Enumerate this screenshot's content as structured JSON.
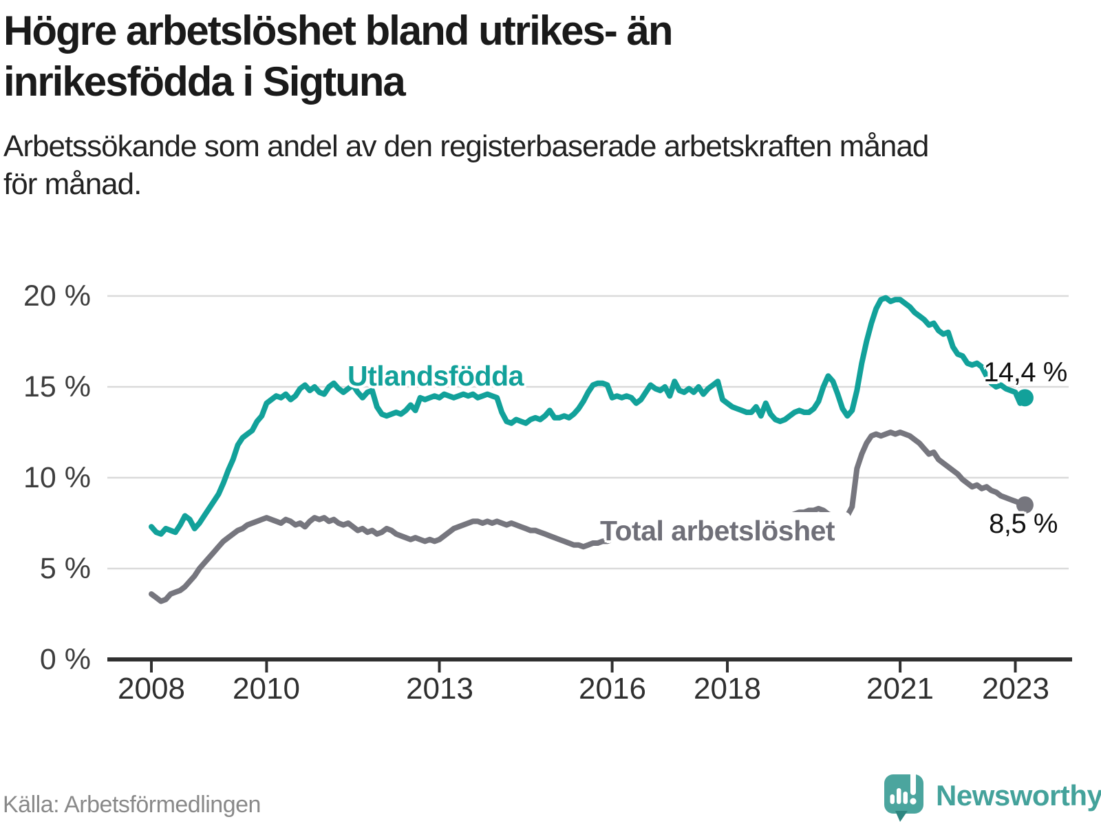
{
  "header": {
    "title": "Högre arbetslöshet bland utrikes- än\ninrikesfödda i Sigtuna",
    "subtitle": "Arbetssökande som andel av den registerbaserade arbetskraften månad\nför månad."
  },
  "chart_data": {
    "type": "line",
    "title": "Högre arbetslöshet bland utrikes- än inrikesfödda i Sigtuna",
    "unit": "%",
    "frequency": "monthly",
    "x_start": "2008-01",
    "x_end": "2023-03",
    "grid": "horizontal",
    "y_axis": {
      "range": [
        0,
        21
      ],
      "ticks": [
        {
          "label": "20 %",
          "value": 20
        },
        {
          "label": "15 %",
          "value": 15
        },
        {
          "label": "10 %",
          "value": 10
        },
        {
          "label": "5 %",
          "value": 5
        },
        {
          "label": "0 %",
          "value": 0
        }
      ]
    },
    "x_axis": {
      "ticks": [
        {
          "label": "2008",
          "year": 2008
        },
        {
          "label": "2010",
          "year": 2010
        },
        {
          "label": "2013",
          "year": 2013
        },
        {
          "label": "2016",
          "year": 2016
        },
        {
          "label": "2018",
          "year": 2018
        },
        {
          "label": "2021",
          "year": 2021
        },
        {
          "label": "2023",
          "year": 2023
        }
      ]
    },
    "series": [
      {
        "name": "Utlandsfödda",
        "color": "#12A19A",
        "end_label": "14,4 %",
        "end_value": 14.4,
        "values": [
          7.3,
          7.0,
          6.9,
          7.2,
          7.1,
          7.0,
          7.4,
          7.9,
          7.7,
          7.2,
          7.5,
          7.9,
          8.3,
          8.7,
          9.1,
          9.7,
          10.4,
          11.0,
          11.8,
          12.2,
          12.4,
          12.6,
          13.1,
          13.4,
          14.1,
          14.3,
          14.5,
          14.4,
          14.6,
          14.3,
          14.5,
          14.9,
          15.1,
          14.8,
          15.0,
          14.7,
          14.6,
          15.0,
          15.2,
          14.9,
          14.7,
          14.9,
          15.1,
          14.7,
          14.4,
          14.7,
          14.8,
          13.9,
          13.5,
          13.4,
          13.5,
          13.6,
          13.5,
          13.7,
          14.0,
          13.7,
          14.4,
          14.3,
          14.4,
          14.5,
          14.4,
          14.6,
          14.5,
          14.4,
          14.5,
          14.6,
          14.5,
          14.6,
          14.4,
          14.5,
          14.6,
          14.5,
          14.4,
          13.6,
          13.1,
          13.0,
          13.2,
          13.1,
          13.0,
          13.2,
          13.3,
          13.2,
          13.4,
          13.7,
          13.3,
          13.3,
          13.4,
          13.3,
          13.5,
          13.8,
          14.2,
          14.7,
          15.1,
          15.2,
          15.2,
          15.1,
          14.4,
          14.5,
          14.4,
          14.5,
          14.4,
          14.1,
          14.3,
          14.7,
          15.1,
          14.9,
          14.8,
          15.0,
          14.5,
          15.3,
          14.8,
          14.7,
          14.9,
          14.7,
          15.0,
          14.6,
          14.9,
          15.1,
          15.3,
          14.3,
          14.1,
          13.9,
          13.8,
          13.7,
          13.6,
          13.6,
          13.9,
          13.4,
          14.1,
          13.5,
          13.2,
          13.1,
          13.2,
          13.4,
          13.6,
          13.7,
          13.6,
          13.6,
          13.8,
          14.2,
          15.0,
          15.6,
          15.3,
          14.6,
          13.8,
          13.4,
          13.7,
          14.8,
          16.3,
          17.5,
          18.5,
          19.3,
          19.8,
          19.9,
          19.7,
          19.8,
          19.8,
          19.6,
          19.4,
          19.1,
          18.9,
          18.7,
          18.4,
          18.5,
          18.1,
          17.9,
          18.0,
          17.2,
          16.8,
          16.7,
          16.3,
          16.2,
          16.3,
          16.1,
          15.6,
          15.2,
          15.0,
          15.1,
          14.9,
          14.8,
          14.7,
          14.1,
          14.4
        ]
      },
      {
        "name": "Total arbetslöshet",
        "color": "#76767E",
        "end_label": "8,5 %",
        "end_value": 8.5,
        "values": [
          3.6,
          3.4,
          3.2,
          3.3,
          3.6,
          3.7,
          3.8,
          4.0,
          4.3,
          4.6,
          5.0,
          5.3,
          5.6,
          5.9,
          6.2,
          6.5,
          6.7,
          6.9,
          7.1,
          7.2,
          7.4,
          7.5,
          7.6,
          7.7,
          7.8,
          7.7,
          7.6,
          7.5,
          7.7,
          7.6,
          7.4,
          7.5,
          7.3,
          7.6,
          7.8,
          7.7,
          7.8,
          7.6,
          7.7,
          7.5,
          7.4,
          7.5,
          7.3,
          7.1,
          7.2,
          7.0,
          7.1,
          6.9,
          7.0,
          7.2,
          7.1,
          6.9,
          6.8,
          6.7,
          6.6,
          6.7,
          6.6,
          6.5,
          6.6,
          6.5,
          6.6,
          6.8,
          7.0,
          7.2,
          7.3,
          7.4,
          7.5,
          7.6,
          7.6,
          7.5,
          7.6,
          7.5,
          7.6,
          7.5,
          7.4,
          7.5,
          7.4,
          7.3,
          7.2,
          7.1,
          7.1,
          7.0,
          6.9,
          6.8,
          6.7,
          6.6,
          6.5,
          6.4,
          6.3,
          6.3,
          6.2,
          6.3,
          6.4,
          6.4,
          6.5,
          6.5,
          6.6,
          6.7,
          6.7,
          6.8,
          6.8,
          6.9,
          6.9,
          7.0,
          6.9,
          6.9,
          7.0,
          7.0,
          7.0,
          7.1,
          7.1,
          7.0,
          7.1,
          7.1,
          7.2,
          7.1,
          7.2,
          7.2,
          7.1,
          7.2,
          7.2,
          7.3,
          7.3,
          7.4,
          7.4,
          7.5,
          7.5,
          7.6,
          7.6,
          7.7,
          7.7,
          7.8,
          7.8,
          7.9,
          8.0,
          8.1,
          8.1,
          8.2,
          8.2,
          8.3,
          8.2,
          8.0,
          7.9,
          7.9,
          7.9,
          7.9,
          8.4,
          10.5,
          11.3,
          11.9,
          12.3,
          12.4,
          12.3,
          12.4,
          12.5,
          12.4,
          12.5,
          12.4,
          12.3,
          12.1,
          11.9,
          11.6,
          11.3,
          11.4,
          11.0,
          10.8,
          10.6,
          10.4,
          10.2,
          9.9,
          9.7,
          9.5,
          9.6,
          9.4,
          9.5,
          9.3,
          9.2,
          9.0,
          8.9,
          8.8,
          8.7,
          8.6,
          8.5
        ]
      }
    ]
  },
  "footer": {
    "source": "Källa: Arbetsförmedlingen",
    "brand": "Newsworthy"
  },
  "theme": {
    "accent_teal": "#12A19A",
    "accent_gray": "#76767E",
    "grid_color": "#DADADA",
    "axis_color": "#303030",
    "logo_teal": "#4BA59E",
    "logo_dark_teal": "#2E8680"
  }
}
